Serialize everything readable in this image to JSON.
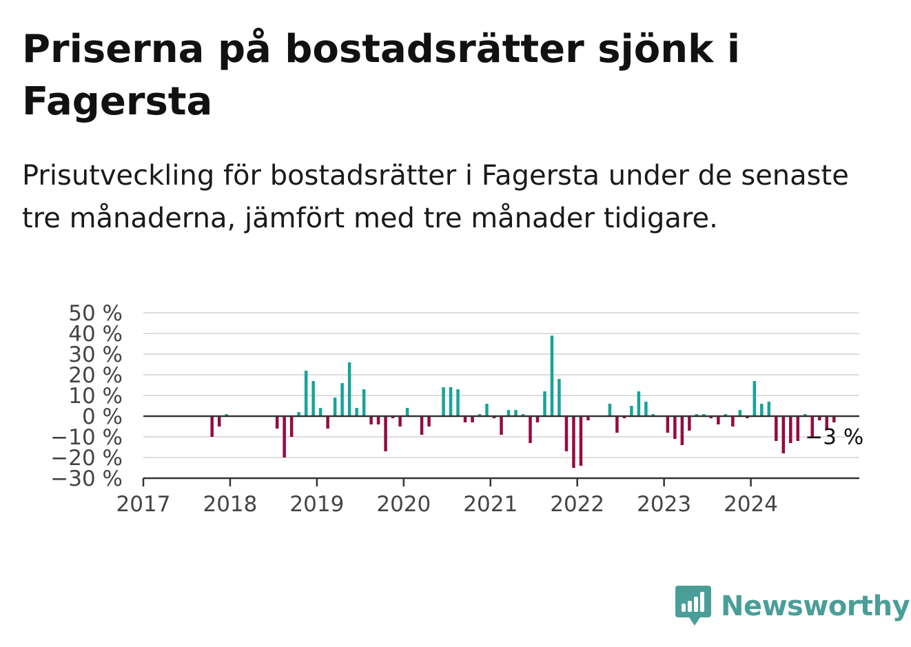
{
  "title": "Priserna på bostadsrätter sjönk i Fagersta",
  "subtitle": "Prisutveckling för bostadsrätter i Fagersta under de senaste tre månaderna, jämfört med tre månader tidigare.",
  "brand": {
    "name": "Newsworthy",
    "color": "#4a9e98",
    "icon": "newsworthy-bar-chart-bubble-icon"
  },
  "chart_data": {
    "type": "bar",
    "x_axis": {
      "start": "2017-01",
      "labels": [
        "2017",
        "2018",
        "2019",
        "2020",
        "2021",
        "2022",
        "2023",
        "2024"
      ]
    },
    "y_axis": {
      "ylim": [
        -30,
        50
      ],
      "ticks": [
        50,
        40,
        30,
        20,
        10,
        0,
        -10,
        -20,
        -30
      ],
      "tick_labels": [
        "50 %",
        "40 %",
        "30 %",
        "20 %",
        "10 %",
        "0 %",
        "−10 %",
        "−20 %",
        "−30 %"
      ]
    },
    "grid": true,
    "colors": {
      "positive": "#17a398",
      "negative": "#960a41",
      "grid": "#dddddd",
      "axis": "#333333"
    },
    "series": [
      {
        "values": [
          null,
          null,
          null,
          null,
          null,
          null,
          null,
          null,
          null,
          -10,
          -5,
          1,
          null,
          null,
          null,
          null,
          null,
          null,
          -6,
          -20,
          -10,
          2,
          22,
          17,
          4,
          -6,
          9,
          16,
          26,
          4,
          13,
          -4,
          -4,
          -17,
          -1,
          -5,
          4,
          null,
          -9,
          -5,
          null,
          14,
          14,
          13,
          -3,
          -3,
          1,
          6,
          -1,
          -9,
          3,
          3,
          1,
          -13,
          -3,
          12,
          39,
          18,
          -17,
          -25,
          -24,
          -2,
          null,
          null,
          6,
          -8,
          -1,
          5,
          12,
          7,
          1,
          null,
          -8,
          -11,
          -14,
          -7,
          1,
          1,
          -1,
          -4,
          1,
          -5,
          3,
          -1,
          17,
          6,
          7,
          -12,
          -18,
          -13,
          -12,
          1,
          -10,
          -2,
          -6,
          -3
        ]
      }
    ],
    "last_value_label": "−3 %"
  }
}
